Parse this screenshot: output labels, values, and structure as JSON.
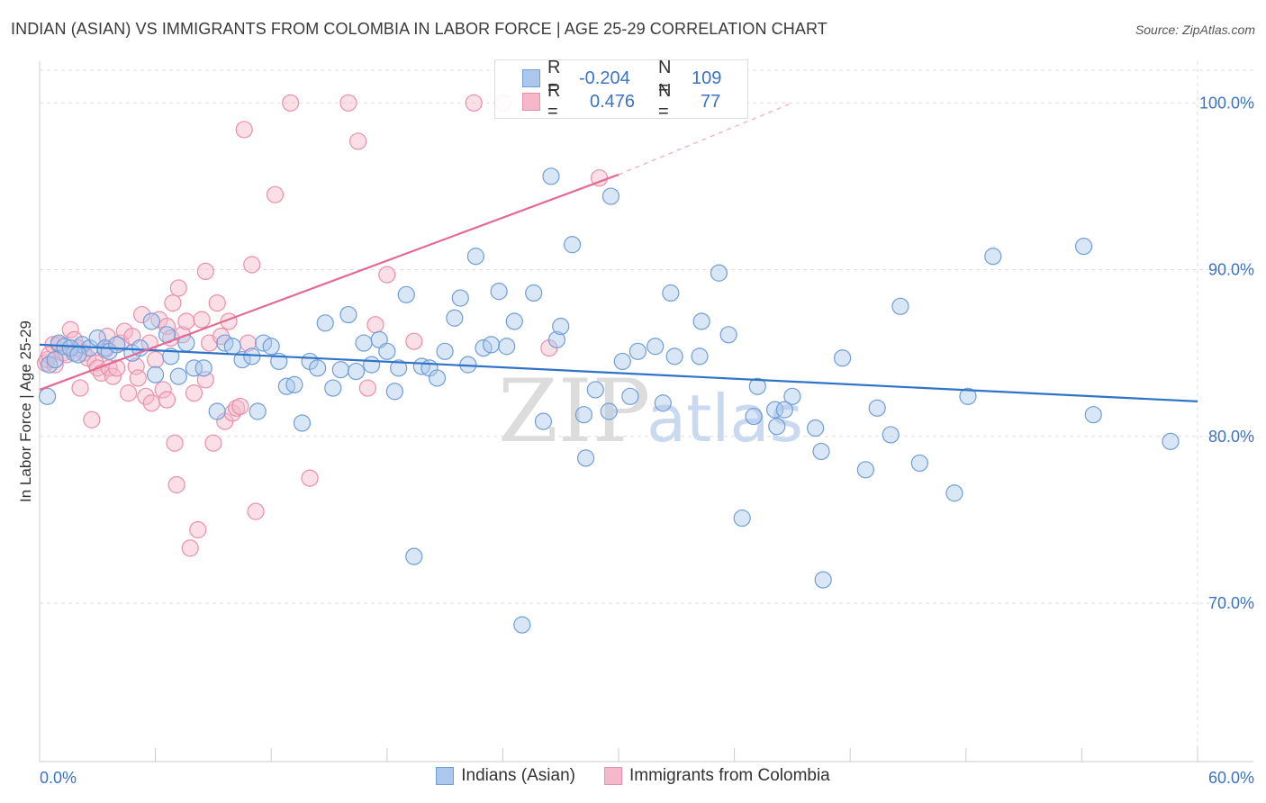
{
  "title": "INDIAN (ASIAN) VS IMMIGRANTS FROM COLOMBIA IN LABOR FORCE | AGE 25-29 CORRELATION CHART",
  "source": "Source: ZipAtlas.com",
  "watermark": {
    "zip": "ZIP",
    "atlas": "atlas"
  },
  "colors": {
    "blue_fill": "#aac7ec",
    "blue_stroke": "#6f9ed8",
    "blue_line": "#2f73c8",
    "pink_fill": "#f5b7ca",
    "pink_stroke": "#ea8fab",
    "pink_line": "#e46a93",
    "axis_text": "#3b73c4",
    "grid": "#dddddd"
  },
  "stats": {
    "r_label": "R =",
    "n_label": "N =",
    "series": [
      {
        "name": "Indians (Asian)",
        "r": "-0.204",
        "n": "109"
      },
      {
        "name": "Immigrants from Colombia",
        "r": "0.476",
        "n": "77"
      }
    ]
  },
  "legend": [
    "Indians (Asian)",
    "Immigrants from Colombia"
  ],
  "chart_data": {
    "type": "scatter",
    "title": "INDIAN (ASIAN) VS IMMIGRANTS FROM COLOMBIA IN LABOR FORCE | AGE 25-29 CORRELATION CHART",
    "xlabel": "",
    "ylabel": "In Labor Force | Age 25-29",
    "xlim": [
      0,
      60
    ],
    "ylim": [
      60.5,
      102.5
    ],
    "x_tick_labels": [
      "0.0%",
      "60.0%"
    ],
    "y_ticks": [
      70,
      80,
      90,
      100
    ],
    "y_tick_labels": [
      "70.0%",
      "80.0%",
      "90.0%",
      "100.0%"
    ],
    "series": [
      {
        "name": "Indians (Asian)",
        "trend": {
          "x0": 0,
          "y0": 85.5,
          "x1": 60,
          "y1": 82.1
        },
        "points": [
          [
            0.4,
            82.4
          ],
          [
            0.5,
            84.3
          ],
          [
            0.8,
            84.6
          ],
          [
            1.0,
            85.6
          ],
          [
            1.3,
            85.4
          ],
          [
            1.8,
            85.0
          ],
          [
            2.2,
            85.5
          ],
          [
            2.6,
            85.3
          ],
          [
            3.0,
            85.9
          ],
          [
            3.4,
            85.3
          ],
          [
            4.8,
            85.0
          ],
          [
            5.2,
            85.3
          ],
          [
            5.8,
            86.9
          ],
          [
            6.0,
            83.7
          ],
          [
            6.6,
            86.1
          ],
          [
            6.8,
            84.8
          ],
          [
            7.2,
            83.6
          ],
          [
            7.6,
            85.6
          ],
          [
            8.0,
            84.1
          ],
          [
            8.5,
            84.1
          ],
          [
            9.2,
            81.5
          ],
          [
            9.6,
            85.6
          ],
          [
            10.0,
            85.4
          ],
          [
            10.5,
            84.6
          ],
          [
            11.0,
            84.8
          ],
          [
            11.3,
            81.5
          ],
          [
            11.6,
            85.6
          ],
          [
            12.0,
            85.4
          ],
          [
            12.4,
            84.5
          ],
          [
            12.8,
            83.0
          ],
          [
            13.2,
            83.1
          ],
          [
            13.6,
            80.8
          ],
          [
            14.0,
            84.5
          ],
          [
            14.4,
            84.1
          ],
          [
            14.8,
            86.8
          ],
          [
            15.2,
            82.9
          ],
          [
            15.6,
            84.0
          ],
          [
            16.0,
            87.3
          ],
          [
            16.4,
            83.9
          ],
          [
            16.8,
            85.6
          ],
          [
            17.2,
            84.3
          ],
          [
            17.6,
            85.8
          ],
          [
            18.0,
            85.1
          ],
          [
            18.4,
            82.7
          ],
          [
            18.6,
            84.1
          ],
          [
            19.0,
            88.5
          ],
          [
            19.4,
            72.8
          ],
          [
            19.8,
            84.2
          ],
          [
            20.2,
            84.1
          ],
          [
            20.6,
            83.5
          ],
          [
            21.0,
            85.1
          ],
          [
            21.5,
            87.1
          ],
          [
            21.8,
            88.3
          ],
          [
            22.2,
            84.3
          ],
          [
            22.6,
            90.8
          ],
          [
            23.0,
            85.3
          ],
          [
            23.4,
            85.5
          ],
          [
            23.8,
            88.7
          ],
          [
            24.2,
            85.4
          ],
          [
            24.6,
            86.9
          ],
          [
            25.0,
            68.7
          ],
          [
            25.6,
            88.6
          ],
          [
            26.1,
            80.9
          ],
          [
            26.5,
            95.6
          ],
          [
            26.8,
            85.8
          ],
          [
            27.0,
            86.6
          ],
          [
            27.6,
            91.5
          ],
          [
            28.2,
            81.3
          ],
          [
            28.3,
            78.7
          ],
          [
            28.8,
            82.8
          ],
          [
            29.5,
            81.5
          ],
          [
            29.6,
            94.4
          ],
          [
            30.2,
            84.5
          ],
          [
            30.6,
            82.4
          ],
          [
            31.0,
            85.1
          ],
          [
            31.9,
            85.4
          ],
          [
            32.3,
            82.0
          ],
          [
            32.7,
            88.6
          ],
          [
            32.9,
            84.8
          ],
          [
            34.2,
            84.8
          ],
          [
            34.3,
            86.9
          ],
          [
            35.2,
            89.8
          ],
          [
            35.7,
            86.1
          ],
          [
            36.4,
            75.1
          ],
          [
            37.0,
            81.2
          ],
          [
            37.2,
            83.0
          ],
          [
            38.1,
            81.6
          ],
          [
            38.2,
            80.6
          ],
          [
            38.6,
            81.6
          ],
          [
            39.0,
            82.4
          ],
          [
            40.2,
            80.5
          ],
          [
            40.5,
            79.1
          ],
          [
            40.6,
            71.4
          ],
          [
            41.6,
            84.7
          ],
          [
            42.8,
            78.0
          ],
          [
            43.4,
            81.7
          ],
          [
            44.1,
            80.1
          ],
          [
            44.6,
            87.8
          ],
          [
            45.6,
            78.4
          ],
          [
            47.4,
            76.6
          ],
          [
            48.1,
            82.4
          ],
          [
            49.4,
            90.8
          ],
          [
            54.1,
            91.4
          ],
          [
            54.6,
            81.3
          ],
          [
            58.6,
            79.7
          ],
          [
            1.6,
            85.3
          ],
          [
            2.0,
            84.9
          ],
          [
            3.6,
            85.1
          ],
          [
            4.0,
            85.5
          ]
        ]
      },
      {
        "name": "Immigrants from Colombia",
        "trend": {
          "x0": 0,
          "y0": 82.8,
          "x1": 30,
          "y1": 95.7
        },
        "trend_dashed_end": {
          "x": 39,
          "y": 100
        },
        "points": [
          [
            0.3,
            84.4
          ],
          [
            0.4,
            84.6
          ],
          [
            0.5,
            84.9
          ],
          [
            0.7,
            85.5
          ],
          [
            0.8,
            84.3
          ],
          [
            1.0,
            85.5
          ],
          [
            1.2,
            85.0
          ],
          [
            1.4,
            84.9
          ],
          [
            1.6,
            86.4
          ],
          [
            1.8,
            85.8
          ],
          [
            2.0,
            85.3
          ],
          [
            2.1,
            82.9
          ],
          [
            2.3,
            85.0
          ],
          [
            2.5,
            84.7
          ],
          [
            2.7,
            81.0
          ],
          [
            2.9,
            84.4
          ],
          [
            3.0,
            84.1
          ],
          [
            3.2,
            83.8
          ],
          [
            3.5,
            86.0
          ],
          [
            3.6,
            84.1
          ],
          [
            3.8,
            83.6
          ],
          [
            4.0,
            84.1
          ],
          [
            4.2,
            85.6
          ],
          [
            4.4,
            86.3
          ],
          [
            4.6,
            82.6
          ],
          [
            4.8,
            86.0
          ],
          [
            5.0,
            84.2
          ],
          [
            5.1,
            83.5
          ],
          [
            5.3,
            87.3
          ],
          [
            5.5,
            82.4
          ],
          [
            5.7,
            85.6
          ],
          [
            5.8,
            82.0
          ],
          [
            6.0,
            84.6
          ],
          [
            6.2,
            87.0
          ],
          [
            6.4,
            82.8
          ],
          [
            6.6,
            86.6
          ],
          [
            6.8,
            85.9
          ],
          [
            6.9,
            88.0
          ],
          [
            7.0,
            79.6
          ],
          [
            7.1,
            77.1
          ],
          [
            7.2,
            88.9
          ],
          [
            7.4,
            86.1
          ],
          [
            7.6,
            86.9
          ],
          [
            7.8,
            73.3
          ],
          [
            8.0,
            82.6
          ],
          [
            8.2,
            74.4
          ],
          [
            8.4,
            87.0
          ],
          [
            8.6,
            89.9
          ],
          [
            8.8,
            85.6
          ],
          [
            9.0,
            79.6
          ],
          [
            9.2,
            88.0
          ],
          [
            9.4,
            86.0
          ],
          [
            9.6,
            80.9
          ],
          [
            9.8,
            86.9
          ],
          [
            10.0,
            81.4
          ],
          [
            10.2,
            81.7
          ],
          [
            10.4,
            81.8
          ],
          [
            10.6,
            98.4
          ],
          [
            10.8,
            85.6
          ],
          [
            11.0,
            90.3
          ],
          [
            11.2,
            75.5
          ],
          [
            12.2,
            94.5
          ],
          [
            13.0,
            100.0
          ],
          [
            14.0,
            77.5
          ],
          [
            16.0,
            100.0
          ],
          [
            16.5,
            97.7
          ],
          [
            17.0,
            82.9
          ],
          [
            17.4,
            86.7
          ],
          [
            18.0,
            89.7
          ],
          [
            19.4,
            85.7
          ],
          [
            22.5,
            100.0
          ],
          [
            24.0,
            100.0
          ],
          [
            26.4,
            85.3
          ],
          [
            29.0,
            95.5
          ],
          [
            6.6,
            82.2
          ],
          [
            8.6,
            83.4
          ],
          [
            3.4,
            85.2
          ]
        ]
      }
    ]
  }
}
